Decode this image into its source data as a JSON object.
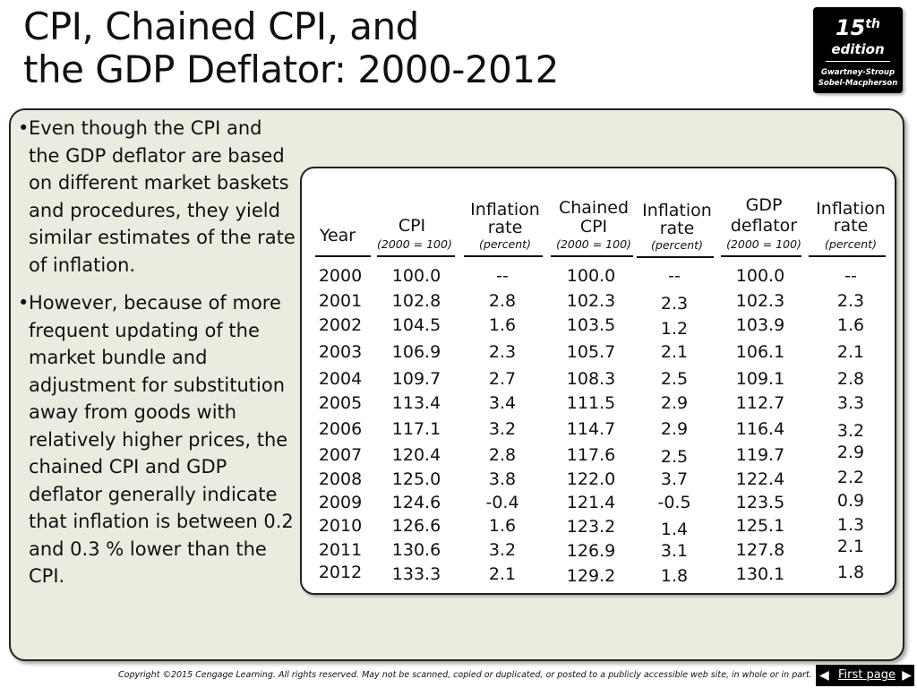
{
  "slide": {
    "title_line1": "CPI, Chained CPI, and",
    "title_line2": "the GDP Deflator:  2000-2012"
  },
  "badge": {
    "number": "15",
    "suffix": "th",
    "word": "edition",
    "authors_line1": "Gwartney-Stroup",
    "authors_line2": "Sobel-Macpherson"
  },
  "bullets": [
    "Even though the CPI and the GDP deflator are based on different market baskets and procedures, they yield similar estimates of the rate of inflation.",
    "However, because of more frequent updating of the market bundle and adjustment for substitution away from goods with relatively higher prices, the chained CPI and GDP deflator generally indicate that inflation is between 0.2 and 0.3 % lower than the CPI."
  ],
  "bullet_symbol": "•",
  "table": {
    "headers": {
      "year": "Year",
      "cpi": "CPI",
      "cpi_sub": "(2000 = 100)",
      "inf1_a": "Inflation",
      "inf1_b": "rate",
      "inf1_sub": "(percent)",
      "chained_a": "Chained",
      "chained_b": "CPI",
      "chained_sub": "(2000 = 100)",
      "inf2_a": "Inflation",
      "inf2_b": "rate",
      "inf2_sub": "(percent)",
      "gdp_a": "GDP",
      "gdp_b": "deflator",
      "gdp_sub": "(2000 = 100)",
      "inf3_a": "Inflation",
      "inf3_b": "rate",
      "inf3_sub": "(percent)"
    },
    "rows": [
      [
        "2000",
        "100.0",
        "--",
        "100.0",
        "--",
        "100.0",
        "--"
      ],
      [
        "2001",
        "102.8",
        "2.8",
        "102.3",
        "2.3",
        "102.3",
        "2.3"
      ],
      [
        "2002",
        "104.5",
        "1.6",
        "103.5",
        "1.2",
        "103.9",
        "1.6"
      ],
      [
        "2003",
        "106.9",
        "2.3",
        "105.7",
        "2.1",
        "106.1",
        "2.1"
      ],
      [
        "2004",
        "109.7",
        "2.7",
        "108.3",
        "2.5",
        "109.1",
        "2.8"
      ],
      [
        "2005",
        "113.4",
        "3.4",
        "111.5",
        "2.9",
        "112.7",
        "3.3"
      ],
      [
        "2006",
        "117.1",
        "3.2",
        "114.7",
        "2.9",
        "116.4",
        "3.2"
      ],
      [
        "2007",
        "120.4",
        "2.8",
        "117.6",
        "2.5",
        "119.7",
        "2.9"
      ],
      [
        "2008",
        "125.0",
        "3.8",
        "122.0",
        "3.7",
        "122.4",
        "2.2"
      ],
      [
        "2009",
        "124.6",
        "-0.4",
        "121.4",
        "-0.5",
        "123.5",
        "0.9"
      ],
      [
        "2010",
        "126.6",
        "1.6",
        "123.2",
        "1.4",
        "125.1",
        "1.3"
      ],
      [
        "2011",
        "130.6",
        "3.2",
        "126.9",
        "3.1",
        "127.8",
        "2.1"
      ],
      [
        "2012",
        "133.3",
        "2.1",
        "129.2",
        "1.8",
        "130.1",
        "1.8"
      ]
    ]
  },
  "footer": {
    "copyright": "Copyright ©2015 Cengage Learning. All rights reserved. May not be scanned, copied or duplicated, or posted to a publicly accessible web site, in whole or in part.",
    "first_page_label": "First page",
    "left_arrow_icon": "arrow-left-icon",
    "right_arrow_icon": "arrow-right-icon"
  }
}
